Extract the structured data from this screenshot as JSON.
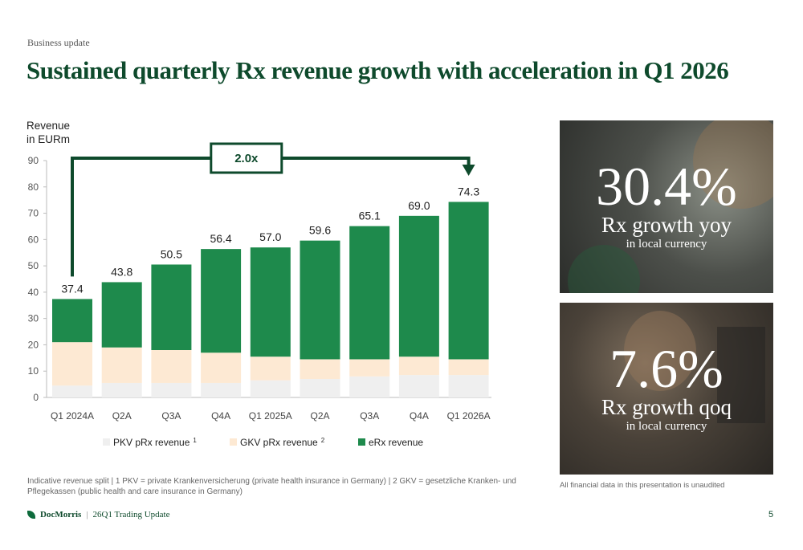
{
  "header": {
    "supertitle": "Business update",
    "title": "Sustained quarterly Rx revenue growth with acceleration in Q1 2026"
  },
  "chart_data": {
    "type": "bar",
    "stacked": true,
    "ylabel_line1": "Revenue",
    "ylabel_line2": "in EURm",
    "ylim": [
      0,
      90
    ],
    "yticks": [
      0,
      10,
      20,
      30,
      40,
      50,
      60,
      70,
      80,
      90
    ],
    "categories": [
      "Q1 2024A",
      "Q2A",
      "Q3A",
      "Q4A",
      "Q1 2025A",
      "Q2A",
      "Q3A",
      "Q4A",
      "Q1 2026A"
    ],
    "totals": [
      37.4,
      43.8,
      50.5,
      56.4,
      57.0,
      59.6,
      65.1,
      69.0,
      74.3
    ],
    "total_labels": [
      "37.4",
      "43.8",
      "50.5",
      "56.4",
      "57.0",
      "59.6",
      "65.1",
      "69.0",
      "74.3"
    ],
    "series": [
      {
        "name": "PKV pRx revenue",
        "superscript": "1",
        "color": "#efefef",
        "values": [
          4.5,
          5.5,
          5.5,
          5.5,
          6.5,
          7.0,
          8.0,
          8.5,
          8.5
        ]
      },
      {
        "name": "GKV pRx revenue",
        "superscript": "2",
        "color": "#fde9d3",
        "values": [
          16.5,
          13.5,
          12.5,
          11.5,
          9.0,
          7.5,
          6.5,
          7.0,
          6.0
        ]
      },
      {
        "name": "eRx revenue",
        "superscript": "",
        "color": "#1e8a4c",
        "values": [
          16.4,
          24.8,
          32.5,
          39.4,
          41.5,
          45.1,
          50.6,
          53.5,
          59.8
        ]
      }
    ],
    "annotation": {
      "label": "2.0x",
      "from_index": 0,
      "to_index": 8
    },
    "grid": false,
    "legend_position": "bottom"
  },
  "kpis": [
    {
      "value": "30.4%",
      "label": "Rx growth yoy",
      "sublabel": "in local currency"
    },
    {
      "value": "7.6%",
      "label": "Rx growth qoq",
      "sublabel": "in local currency"
    }
  ],
  "footnote": "Indicative revenue split | 1 PKV = private Krankenversicherung (private health insurance in Germany) | 2 GKV = gesetzliche Kranken- und Pflegekassen (public health and care insurance in Germany)",
  "unaudited_note": "All financial data in this presentation is unaudited",
  "footer": {
    "brand": "DocMorris",
    "separator": "|",
    "doc_title": "26Q1 Trading Update",
    "page_number": "5"
  },
  "colors": {
    "brand_green": "#0e4a2c",
    "bracket_green": "#0e4a2c"
  }
}
